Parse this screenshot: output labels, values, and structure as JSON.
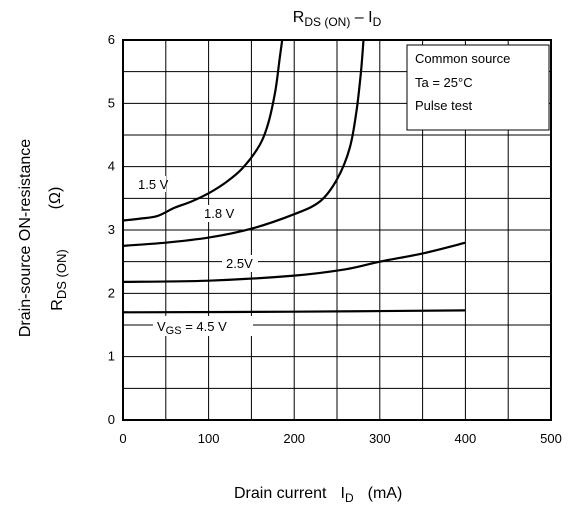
{
  "chart_data": {
    "type": "line",
    "title_main": "R",
    "title_sub1": "DS (ON)",
    "title_mid": " – I",
    "title_sub2": "D",
    "x_label_main": "Drain current",
    "x_label_sym": "I",
    "x_label_sub": "D",
    "x_label_unit": "(mA)",
    "y_label_line1": "Drain-source ON-resistance",
    "y_label_sym": "R",
    "y_label_sub": "DS (ON)",
    "y_label_unit": "(Ω)",
    "xlim": [
      0,
      500
    ],
    "ylim": [
      0,
      6
    ],
    "x_ticks": [
      0,
      100,
      200,
      300,
      400,
      500
    ],
    "y_ticks": [
      0,
      1,
      2,
      3,
      4,
      5,
      6
    ],
    "grid": true,
    "note": [
      "Common source",
      "Ta = 25°C",
      "Pulse test"
    ],
    "series": [
      {
        "name": "1.5 V",
        "points": [
          [
            0,
            3.15
          ],
          [
            20,
            3.18
          ],
          [
            40,
            3.22
          ],
          [
            60,
            3.35
          ],
          [
            80,
            3.45
          ],
          [
            100,
            3.58
          ],
          [
            120,
            3.75
          ],
          [
            140,
            3.98
          ],
          [
            160,
            4.35
          ],
          [
            170,
            4.7
          ],
          [
            178,
            5.2
          ],
          [
            183,
            5.7
          ],
          [
            186,
            6.0
          ]
        ]
      },
      {
        "name": "1.8 V",
        "points": [
          [
            0,
            2.75
          ],
          [
            50,
            2.8
          ],
          [
            100,
            2.88
          ],
          [
            150,
            3.02
          ],
          [
            200,
            3.25
          ],
          [
            230,
            3.45
          ],
          [
            250,
            3.8
          ],
          [
            265,
            4.3
          ],
          [
            273,
            4.9
          ],
          [
            278,
            5.5
          ],
          [
            281,
            6.0
          ]
        ]
      },
      {
        "name": "2.5V",
        "points": [
          [
            0,
            2.18
          ],
          [
            100,
            2.2
          ],
          [
            200,
            2.28
          ],
          [
            260,
            2.38
          ],
          [
            300,
            2.5
          ],
          [
            350,
            2.63
          ],
          [
            400,
            2.8
          ]
        ]
      },
      {
        "name_main": "V",
        "name_sub": "GS",
        "name_rest": " = 4.5 V",
        "points": [
          [
            0,
            1.7
          ],
          [
            200,
            1.71
          ],
          [
            400,
            1.73
          ]
        ]
      }
    ]
  }
}
